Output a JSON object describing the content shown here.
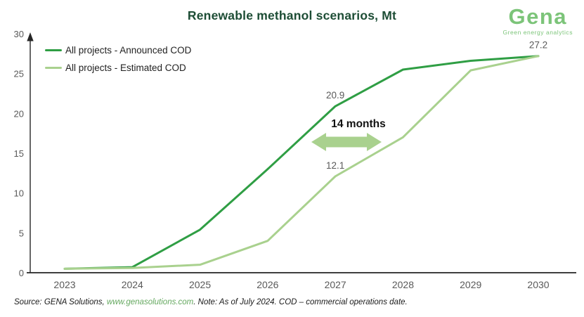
{
  "header": {
    "title": "Renewable methanol scenarios, Mt",
    "logo": {
      "name": "Gena",
      "tagline": "Green energy analytics"
    }
  },
  "chart_data": {
    "type": "line",
    "title": "Renewable methanol scenarios, Mt",
    "x": [
      2023,
      2024,
      2025,
      2026,
      2027,
      2028,
      2029,
      2030
    ],
    "x_tick_labels": [
      "2023",
      "2024",
      "2025",
      "2026",
      "2027",
      "2028",
      "2029",
      "2030"
    ],
    "series": [
      {
        "name": "All projects - Announced COD",
        "color": "#2f9e44",
        "values": [
          0.5,
          0.7,
          5.4,
          13.0,
          20.9,
          25.5,
          26.6,
          27.2
        ]
      },
      {
        "name": "All projects - Estimated COD",
        "color": "#a9d18e",
        "values": [
          0.5,
          0.6,
          1.0,
          4.0,
          12.1,
          17.0,
          25.4,
          27.2
        ]
      }
    ],
    "ylim": [
      0,
      30
    ],
    "yticks": [
      0,
      5,
      10,
      15,
      20,
      25,
      30
    ],
    "grid": false,
    "legend_position": "top-left",
    "point_labels": [
      {
        "series": 0,
        "year": 2027,
        "text": "20.9"
      },
      {
        "series": 1,
        "year": 2027,
        "text": "12.1"
      },
      {
        "series": 0,
        "year": 2030,
        "text": "27.2"
      }
    ],
    "annotation": {
      "text": "14 months",
      "arrow_color": "#a9d18e"
    }
  },
  "footer": {
    "source_prefix": "Source: GENA Solutions, ",
    "source_link": "www.genasolutions.com",
    "source_suffix": ". Note: As of July 2024. COD – commercial operations date."
  },
  "colors": {
    "title_green": "#1d4d35",
    "logo_green": "#7cc479",
    "axis_line": "#3f3f3f",
    "tick_label": "#595959",
    "annotation_text": "#111111",
    "link_green": "#64a85f"
  }
}
